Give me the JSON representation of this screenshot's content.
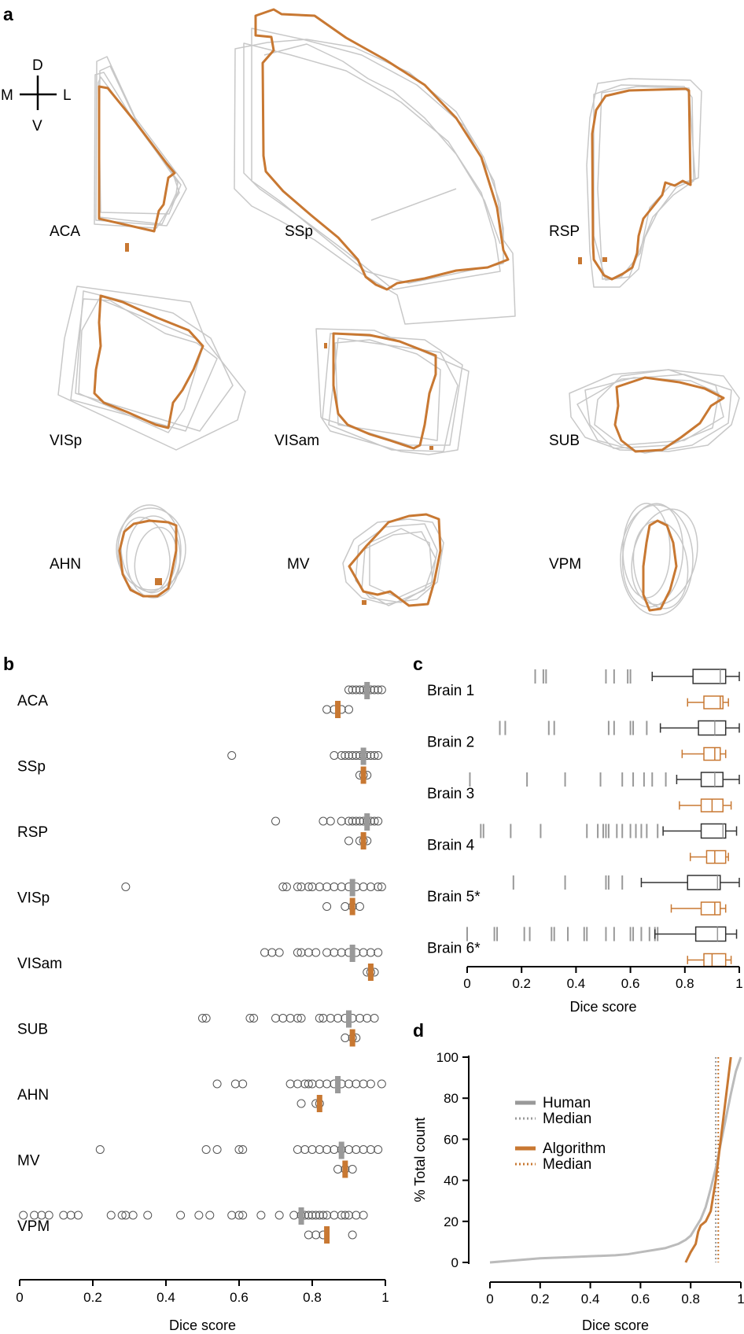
{
  "panel_a": {
    "label": "a",
    "compass": {
      "d": "D",
      "v": "V",
      "m": "M",
      "l": "L"
    },
    "regions": [
      {
        "key": "aca",
        "label": "ACA"
      },
      {
        "key": "ssp",
        "label": "SSp"
      },
      {
        "key": "rsp",
        "label": "RSP"
      },
      {
        "key": "visp",
        "label": "VISp"
      },
      {
        "key": "visam",
        "label": "VISam"
      },
      {
        "key": "sub",
        "label": "SUB"
      },
      {
        "key": "ahn",
        "label": "AHN"
      },
      {
        "key": "mv",
        "label": "MV"
      },
      {
        "key": "vpm",
        "label": "VPM"
      }
    ],
    "colors": {
      "human": "#c8c8c8",
      "algorithm": "#c87832"
    }
  },
  "chart_data": [
    {
      "panel": "b",
      "type": "scatter",
      "xlabel": "Dice score",
      "xlim": [
        0,
        1
      ],
      "xticks": [
        "0",
        "0.2",
        "0.4",
        "0.6",
        "0.8",
        "1"
      ],
      "colors": {
        "human_median": "#999999",
        "algorithm": "#c87832",
        "points": "#555555"
      },
      "regions": [
        {
          "label": "ACA",
          "human": [
            0.9,
            0.91,
            0.92,
            0.93,
            0.94,
            0.95,
            0.96,
            0.97,
            0.98,
            0.99
          ],
          "human_median": 0.95,
          "algorithm": [
            0.84,
            0.86,
            0.88,
            0.9
          ],
          "algorithm_median": 0.87
        },
        {
          "label": "SSp",
          "human": [
            0.58,
            0.86,
            0.88,
            0.89,
            0.9,
            0.91,
            0.92,
            0.93,
            0.94,
            0.95,
            0.96,
            0.97,
            0.98
          ],
          "human_median": 0.94,
          "algorithm": [
            0.93,
            0.94,
            0.95
          ],
          "algorithm_median": 0.94
        },
        {
          "label": "RSP",
          "human": [
            0.7,
            0.83,
            0.85,
            0.88,
            0.9,
            0.91,
            0.92,
            0.93,
            0.94,
            0.95,
            0.96,
            0.97,
            0.98
          ],
          "human_median": 0.95,
          "algorithm": [
            0.9,
            0.93,
            0.94,
            0.95
          ],
          "algorithm_median": 0.94
        },
        {
          "label": "VISp",
          "human": [
            0.29,
            0.72,
            0.73,
            0.76,
            0.77,
            0.79,
            0.8,
            0.82,
            0.84,
            0.86,
            0.88,
            0.9,
            0.92,
            0.94,
            0.96,
            0.98,
            0.99
          ],
          "human_median": 0.91,
          "algorithm": [
            0.84,
            0.89,
            0.91,
            0.93
          ],
          "algorithm_median": 0.91
        },
        {
          "label": "VISam",
          "human": [
            0.67,
            0.69,
            0.71,
            0.76,
            0.77,
            0.79,
            0.81,
            0.84,
            0.86,
            0.88,
            0.9,
            0.92,
            0.94,
            0.96,
            0.98
          ],
          "human_median": 0.91,
          "algorithm": [
            0.95,
            0.96,
            0.97
          ],
          "algorithm_median": 0.96
        },
        {
          "label": "SUB",
          "human": [
            0.5,
            0.51,
            0.63,
            0.64,
            0.7,
            0.72,
            0.74,
            0.76,
            0.77,
            0.82,
            0.83,
            0.85,
            0.87,
            0.89,
            0.91,
            0.93,
            0.95,
            0.97
          ],
          "human_median": 0.9,
          "algorithm": [
            0.89,
            0.91,
            0.92
          ],
          "algorithm_median": 0.91
        },
        {
          "label": "AHN",
          "human": [
            0.54,
            0.59,
            0.61,
            0.74,
            0.76,
            0.78,
            0.79,
            0.8,
            0.82,
            0.84,
            0.86,
            0.88,
            0.9,
            0.92,
            0.94,
            0.96,
            0.99
          ],
          "human_median": 0.87,
          "algorithm": [
            0.77,
            0.81,
            0.82
          ],
          "algorithm_median": 0.82
        },
        {
          "label": "MV",
          "human": [
            0.22,
            0.51,
            0.54,
            0.6,
            0.61,
            0.76,
            0.78,
            0.8,
            0.82,
            0.84,
            0.86,
            0.88,
            0.9,
            0.92,
            0.94,
            0.96,
            0.98
          ],
          "human_median": 0.88,
          "algorithm": [
            0.87,
            0.89,
            0.91
          ],
          "algorithm_median": 0.89
        },
        {
          "label": "VPM",
          "human": [
            0.01,
            0.04,
            0.06,
            0.08,
            0.12,
            0.14,
            0.16,
            0.25,
            0.28,
            0.29,
            0.31,
            0.35,
            0.44,
            0.49,
            0.52,
            0.58,
            0.6,
            0.61,
            0.66,
            0.71,
            0.75,
            0.77,
            0.78,
            0.79,
            0.8,
            0.81,
            0.82,
            0.83,
            0.84,
            0.86,
            0.88,
            0.89,
            0.9,
            0.92,
            0.94
          ],
          "human_median": 0.77,
          "algorithm": [
            0.79,
            0.81,
            0.83,
            0.91
          ],
          "algorithm_median": 0.84
        }
      ]
    },
    {
      "panel": "c",
      "type": "box",
      "xlabel": "Dice score",
      "xlim": [
        0,
        1
      ],
      "xticks": [
        "0",
        "0.2",
        "0.4",
        "0.6",
        "0.8",
        "1"
      ],
      "colors": {
        "human": "#333333",
        "algorithm": "#c87832",
        "outlier": "#999999"
      },
      "brains": [
        {
          "label": "Brain 1",
          "outliers": [
            0.25,
            0.28,
            0.29,
            0.51,
            0.54,
            0.59,
            0.6
          ],
          "human": {
            "min": 0.68,
            "q1": 0.83,
            "median": 0.93,
            "q3": 0.95,
            "max": 1.0
          },
          "algorithm": {
            "min": 0.81,
            "q1": 0.87,
            "median": 0.93,
            "q3": 0.94,
            "max": 0.96
          }
        },
        {
          "label": "Brain 2",
          "outliers": [
            0.12,
            0.14,
            0.3,
            0.32,
            0.52,
            0.54,
            0.6,
            0.61,
            0.66
          ],
          "human": {
            "min": 0.71,
            "q1": 0.85,
            "median": 0.91,
            "q3": 0.95,
            "max": 1.0
          },
          "algorithm": {
            "min": 0.79,
            "q1": 0.87,
            "median": 0.91,
            "q3": 0.93,
            "max": 0.95
          }
        },
        {
          "label": "Brain 3",
          "outliers": [
            0.01,
            0.22,
            0.36,
            0.49,
            0.57,
            0.61,
            0.65,
            0.68,
            0.73
          ],
          "human": {
            "min": 0.77,
            "q1": 0.86,
            "median": 0.91,
            "q3": 0.94,
            "max": 1.0
          },
          "algorithm": {
            "min": 0.78,
            "q1": 0.86,
            "median": 0.9,
            "q3": 0.94,
            "max": 0.97
          }
        },
        {
          "label": "Brain 4",
          "outliers": [
            0.05,
            0.06,
            0.16,
            0.27,
            0.44,
            0.48,
            0.5,
            0.51,
            0.52,
            0.55,
            0.57,
            0.6,
            0.62,
            0.64,
            0.66,
            0.7
          ],
          "human": {
            "min": 0.72,
            "q1": 0.86,
            "median": 0.94,
            "q3": 0.95,
            "max": 0.99
          },
          "algorithm": {
            "min": 0.82,
            "q1": 0.88,
            "median": 0.91,
            "q3": 0.95,
            "max": 0.96
          }
        },
        {
          "label": "Brain 5*",
          "outliers": [
            0.17,
            0.36,
            0.51,
            0.52,
            0.57
          ],
          "human": {
            "min": 0.64,
            "q1": 0.81,
            "median": 0.92,
            "q3": 0.93,
            "max": 1.0
          },
          "algorithm": {
            "min": 0.75,
            "q1": 0.86,
            "median": 0.91,
            "q3": 0.93,
            "max": 0.95
          }
        },
        {
          "label": "Brain 6*",
          "outliers": [
            0.0,
            0.1,
            0.11,
            0.21,
            0.23,
            0.31,
            0.32,
            0.37,
            0.43,
            0.44,
            0.51,
            0.54,
            0.6,
            0.61,
            0.64,
            0.67,
            0.69,
            0.7
          ],
          "human": {
            "min": 0.69,
            "q1": 0.84,
            "median": 0.92,
            "q3": 0.95,
            "max": 0.99
          },
          "algorithm": {
            "min": 0.81,
            "q1": 0.87,
            "median": 0.9,
            "q3": 0.95,
            "max": 0.97
          }
        }
      ]
    },
    {
      "panel": "d",
      "type": "line",
      "xlabel": "Dice score",
      "ylabel": "% Total count",
      "xlim": [
        0,
        1
      ],
      "ylim": [
        0,
        100
      ],
      "xticks": [
        "0",
        "0.2",
        "0.4",
        "0.6",
        "0.8",
        "1"
      ],
      "yticks": [
        "0",
        "20",
        "40",
        "60",
        "80",
        "100"
      ],
      "legend": {
        "human": "Human",
        "human_median": "Median",
        "algorithm": "Algorithm",
        "algorithm_median": "Median"
      },
      "series": [
        {
          "name": "Human",
          "color": "#bbbbbb",
          "x": [
            0,
            0.1,
            0.2,
            0.3,
            0.4,
            0.5,
            0.55,
            0.6,
            0.65,
            0.7,
            0.75,
            0.78,
            0.8,
            0.82,
            0.84,
            0.86,
            0.88,
            0.9,
            0.92,
            0.94,
            0.96,
            0.98,
            1.0
          ],
          "y": [
            0,
            1,
            2,
            2.5,
            3,
            3.5,
            4,
            5,
            6,
            7,
            9,
            11,
            13,
            17,
            21,
            27,
            36,
            46,
            58,
            70,
            82,
            93,
            100
          ]
        },
        {
          "name": "Algorithm",
          "color": "#c87832",
          "x": [
            0.78,
            0.8,
            0.82,
            0.83,
            0.84,
            0.86,
            0.88,
            0.9,
            0.92,
            0.94,
            0.96
          ],
          "y": [
            0,
            5,
            9,
            15,
            18,
            20,
            25,
            40,
            60,
            80,
            100
          ]
        }
      ],
      "medians": {
        "human": 0.9,
        "algorithm": 0.91
      }
    }
  ]
}
